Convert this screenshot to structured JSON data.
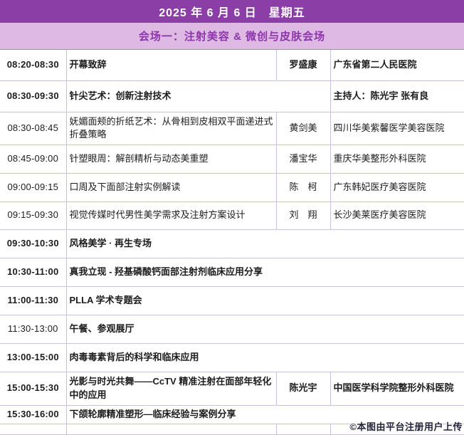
{
  "header": {
    "date_title": "2025 年 6 月 6 日　星期五",
    "venue_title": "会场一：注射美容 & 微创与皮肤会场"
  },
  "colors": {
    "top_bar_bg": "#8b3fa6",
    "venue_bar_bg": "#ddb9e4",
    "venue_text": "#8d35a9",
    "accent_purple_text": "#7466c6",
    "body_text": "#1c1c1c",
    "grid_border": "#ccc0e2"
  },
  "watermark": {
    "text": "©本图由平台注册用户上传"
  },
  "schedule": {
    "rows": [
      {
        "time": "08:20-08:30",
        "topic": "开幕致辞",
        "speaker": "罗盛康",
        "org": "广东省第二人民医院",
        "layout": "normal",
        "time_style": "strong",
        "topic_style": "strong",
        "detail_style": "strong"
      },
      {
        "time": "08:30-09:30",
        "topic": "针尖艺术：创新注射技术",
        "speaker": "",
        "org": "主持人：陈光宇 张有良",
        "layout": "host",
        "time_style": "strong",
        "topic_style": "strong",
        "detail_style": "strong"
      },
      {
        "time": "08:30-08:45",
        "topic": "妩媚面颊的折纸艺术：从骨相到皮相双平面递进式折叠策略",
        "speaker": "黄剑美",
        "org": "四川华美紫馨医学美容医院",
        "layout": "normal",
        "time_style": "plain",
        "topic_style": "plain",
        "detail_style": "plain"
      },
      {
        "time": "08:45-09:00",
        "topic": "针塑眼周：解剖精析与动态美重塑",
        "speaker": "潘宝华",
        "org": "重庆华美整形外科医院",
        "layout": "normal",
        "time_style": "plain",
        "topic_style": "plain",
        "detail_style": "plain"
      },
      {
        "time": "09:00-09:15",
        "topic": "口周及下面部注射实例解读",
        "speaker": "陈　柯",
        "org": "广东韩妃医疗美容医院",
        "layout": "normal",
        "time_style": "plain",
        "topic_style": "plain",
        "detail_style": "plain"
      },
      {
        "time": "09:15-09:30",
        "topic": "视觉传媒时代男性美学需求及注射方案设计",
        "speaker": "刘　翔",
        "org": "长沙美莱医疗美容医院",
        "layout": "normal",
        "time_style": "plain",
        "topic_style": "plain",
        "detail_style": "plain"
      },
      {
        "time": "09:30-10:30",
        "topic": "风格美学 · 再生专场",
        "speaker": "",
        "org": "",
        "layout": "full",
        "time_style": "purple",
        "topic_style": "purple",
        "detail_style": "purple"
      },
      {
        "time": "10:30-11:00",
        "topic": "真我立现 - 羟基磷酸钙面部注射剂临床应用分享",
        "speaker": "",
        "org": "",
        "layout": "full",
        "time_style": "purple",
        "topic_style": "purple",
        "detail_style": "purple"
      },
      {
        "time": "11:00-11:30",
        "topic": "PLLA 学术专题会",
        "speaker": "",
        "org": "",
        "layout": "full",
        "time_style": "purple",
        "topic_style": "purple",
        "detail_style": "purple"
      },
      {
        "time": "11:30-13:00",
        "topic": "午餐、参观展厅",
        "speaker": "",
        "org": "",
        "layout": "full",
        "time_style": "plain",
        "topic_style": "purple",
        "detail_style": "purple"
      },
      {
        "time": "13:00-15:00",
        "topic": "肉毒毒素背后的科学和临床应用",
        "speaker": "",
        "org": "",
        "layout": "full",
        "time_style": "purple",
        "topic_style": "purple",
        "detail_style": "purple"
      },
      {
        "time": "15:00-15:30",
        "topic": "光影与时光共舞——CcTV 精准注射在面部年轻化中的应用",
        "speaker": "陈光宇",
        "org": "中国医学科学院整形外科医院",
        "layout": "normal",
        "time_style": "purple",
        "topic_style": "purple",
        "detail_style": "purple"
      },
      {
        "time": "15:30-16:00",
        "topic": "下颌轮廓精准塑形—临床经验与案例分享",
        "speaker": "",
        "org": "",
        "layout": "full",
        "time_style": "purple",
        "topic_style": "purple",
        "detail_style": "purple"
      },
      {
        "time": "",
        "topic": "",
        "speaker": "",
        "org": "",
        "layout": "normal",
        "time_style": "plain",
        "topic_style": "plain",
        "detail_style": "plain"
      }
    ]
  }
}
